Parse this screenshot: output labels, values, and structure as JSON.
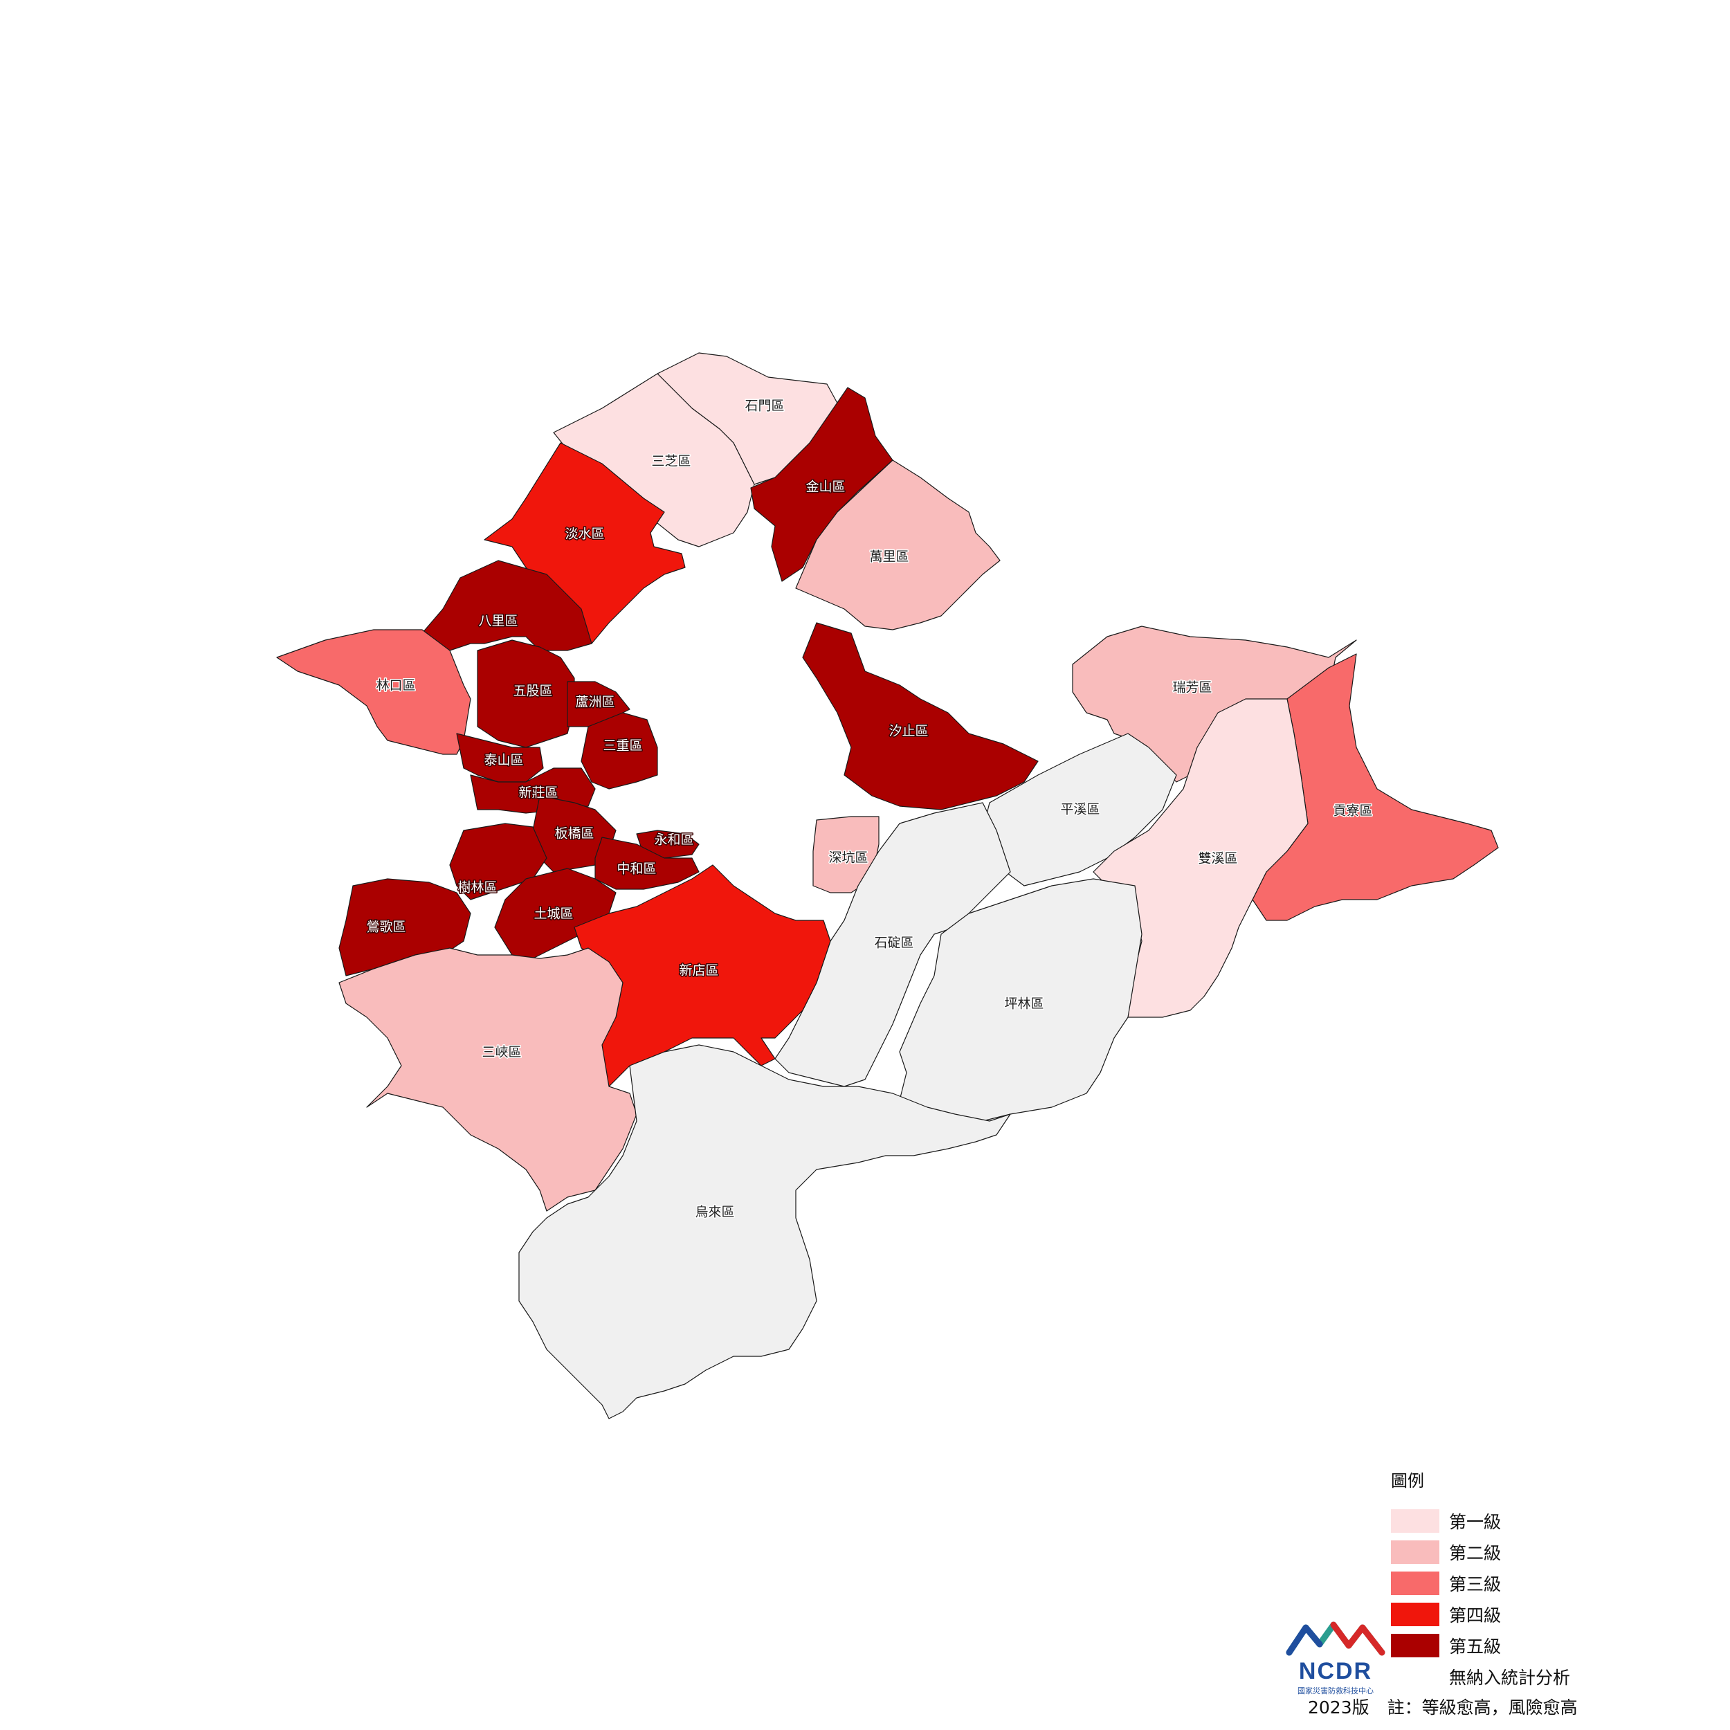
{
  "legend": {
    "title": "圖例",
    "items": [
      {
        "label": "第一級",
        "color": "#fde0e1"
      },
      {
        "label": "第二級",
        "color": "#f9bcbc"
      },
      {
        "label": "第三級",
        "color": "#f86a6a"
      },
      {
        "label": "第四級",
        "color": "#f0160c"
      },
      {
        "label": "第五級",
        "color": "#aa0000"
      },
      {
        "label": "無納入統計分析",
        "color": "#f0f0f0"
      }
    ]
  },
  "districts": [
    {
      "name": "石門區",
      "level": 1
    },
    {
      "name": "三芝區",
      "level": 1
    },
    {
      "name": "金山區",
      "level": 5
    },
    {
      "name": "淡水區",
      "level": 4
    },
    {
      "name": "萬里區",
      "level": 2
    },
    {
      "name": "八里區",
      "level": 5
    },
    {
      "name": "林口區",
      "level": 3
    },
    {
      "name": "五股區",
      "level": 5
    },
    {
      "name": "蘆洲區",
      "level": 5
    },
    {
      "name": "三重區",
      "level": 5
    },
    {
      "name": "泰山區",
      "level": 5
    },
    {
      "name": "新莊區",
      "level": 5
    },
    {
      "name": "汐止區",
      "level": 5
    },
    {
      "name": "瑞芳區",
      "level": 2
    },
    {
      "name": "板橋區",
      "level": 5
    },
    {
      "name": "永和區",
      "level": 5
    },
    {
      "name": "中和區",
      "level": 5
    },
    {
      "name": "樹林區",
      "level": 5
    },
    {
      "name": "土城區",
      "level": 5
    },
    {
      "name": "鶯歌區",
      "level": 5
    },
    {
      "name": "深坑區",
      "level": 2
    },
    {
      "name": "平溪區",
      "level": 0
    },
    {
      "name": "貢寮區",
      "level": 3
    },
    {
      "name": "雙溪區",
      "level": 1
    },
    {
      "name": "石碇區",
      "level": 0
    },
    {
      "name": "新店區",
      "level": 4
    },
    {
      "name": "坪林區",
      "level": 0
    },
    {
      "name": "三峽區",
      "level": 2
    },
    {
      "name": "烏來區",
      "level": 0
    }
  ],
  "logo": {
    "text": "NCDR",
    "subtitle": "國家災害防救科技中心",
    "colors": [
      "#2a9d8f",
      "#1f4e9e",
      "#d62828"
    ]
  },
  "footer": {
    "edition": "2023版",
    "note": "註：等級愈高，風險愈高"
  }
}
